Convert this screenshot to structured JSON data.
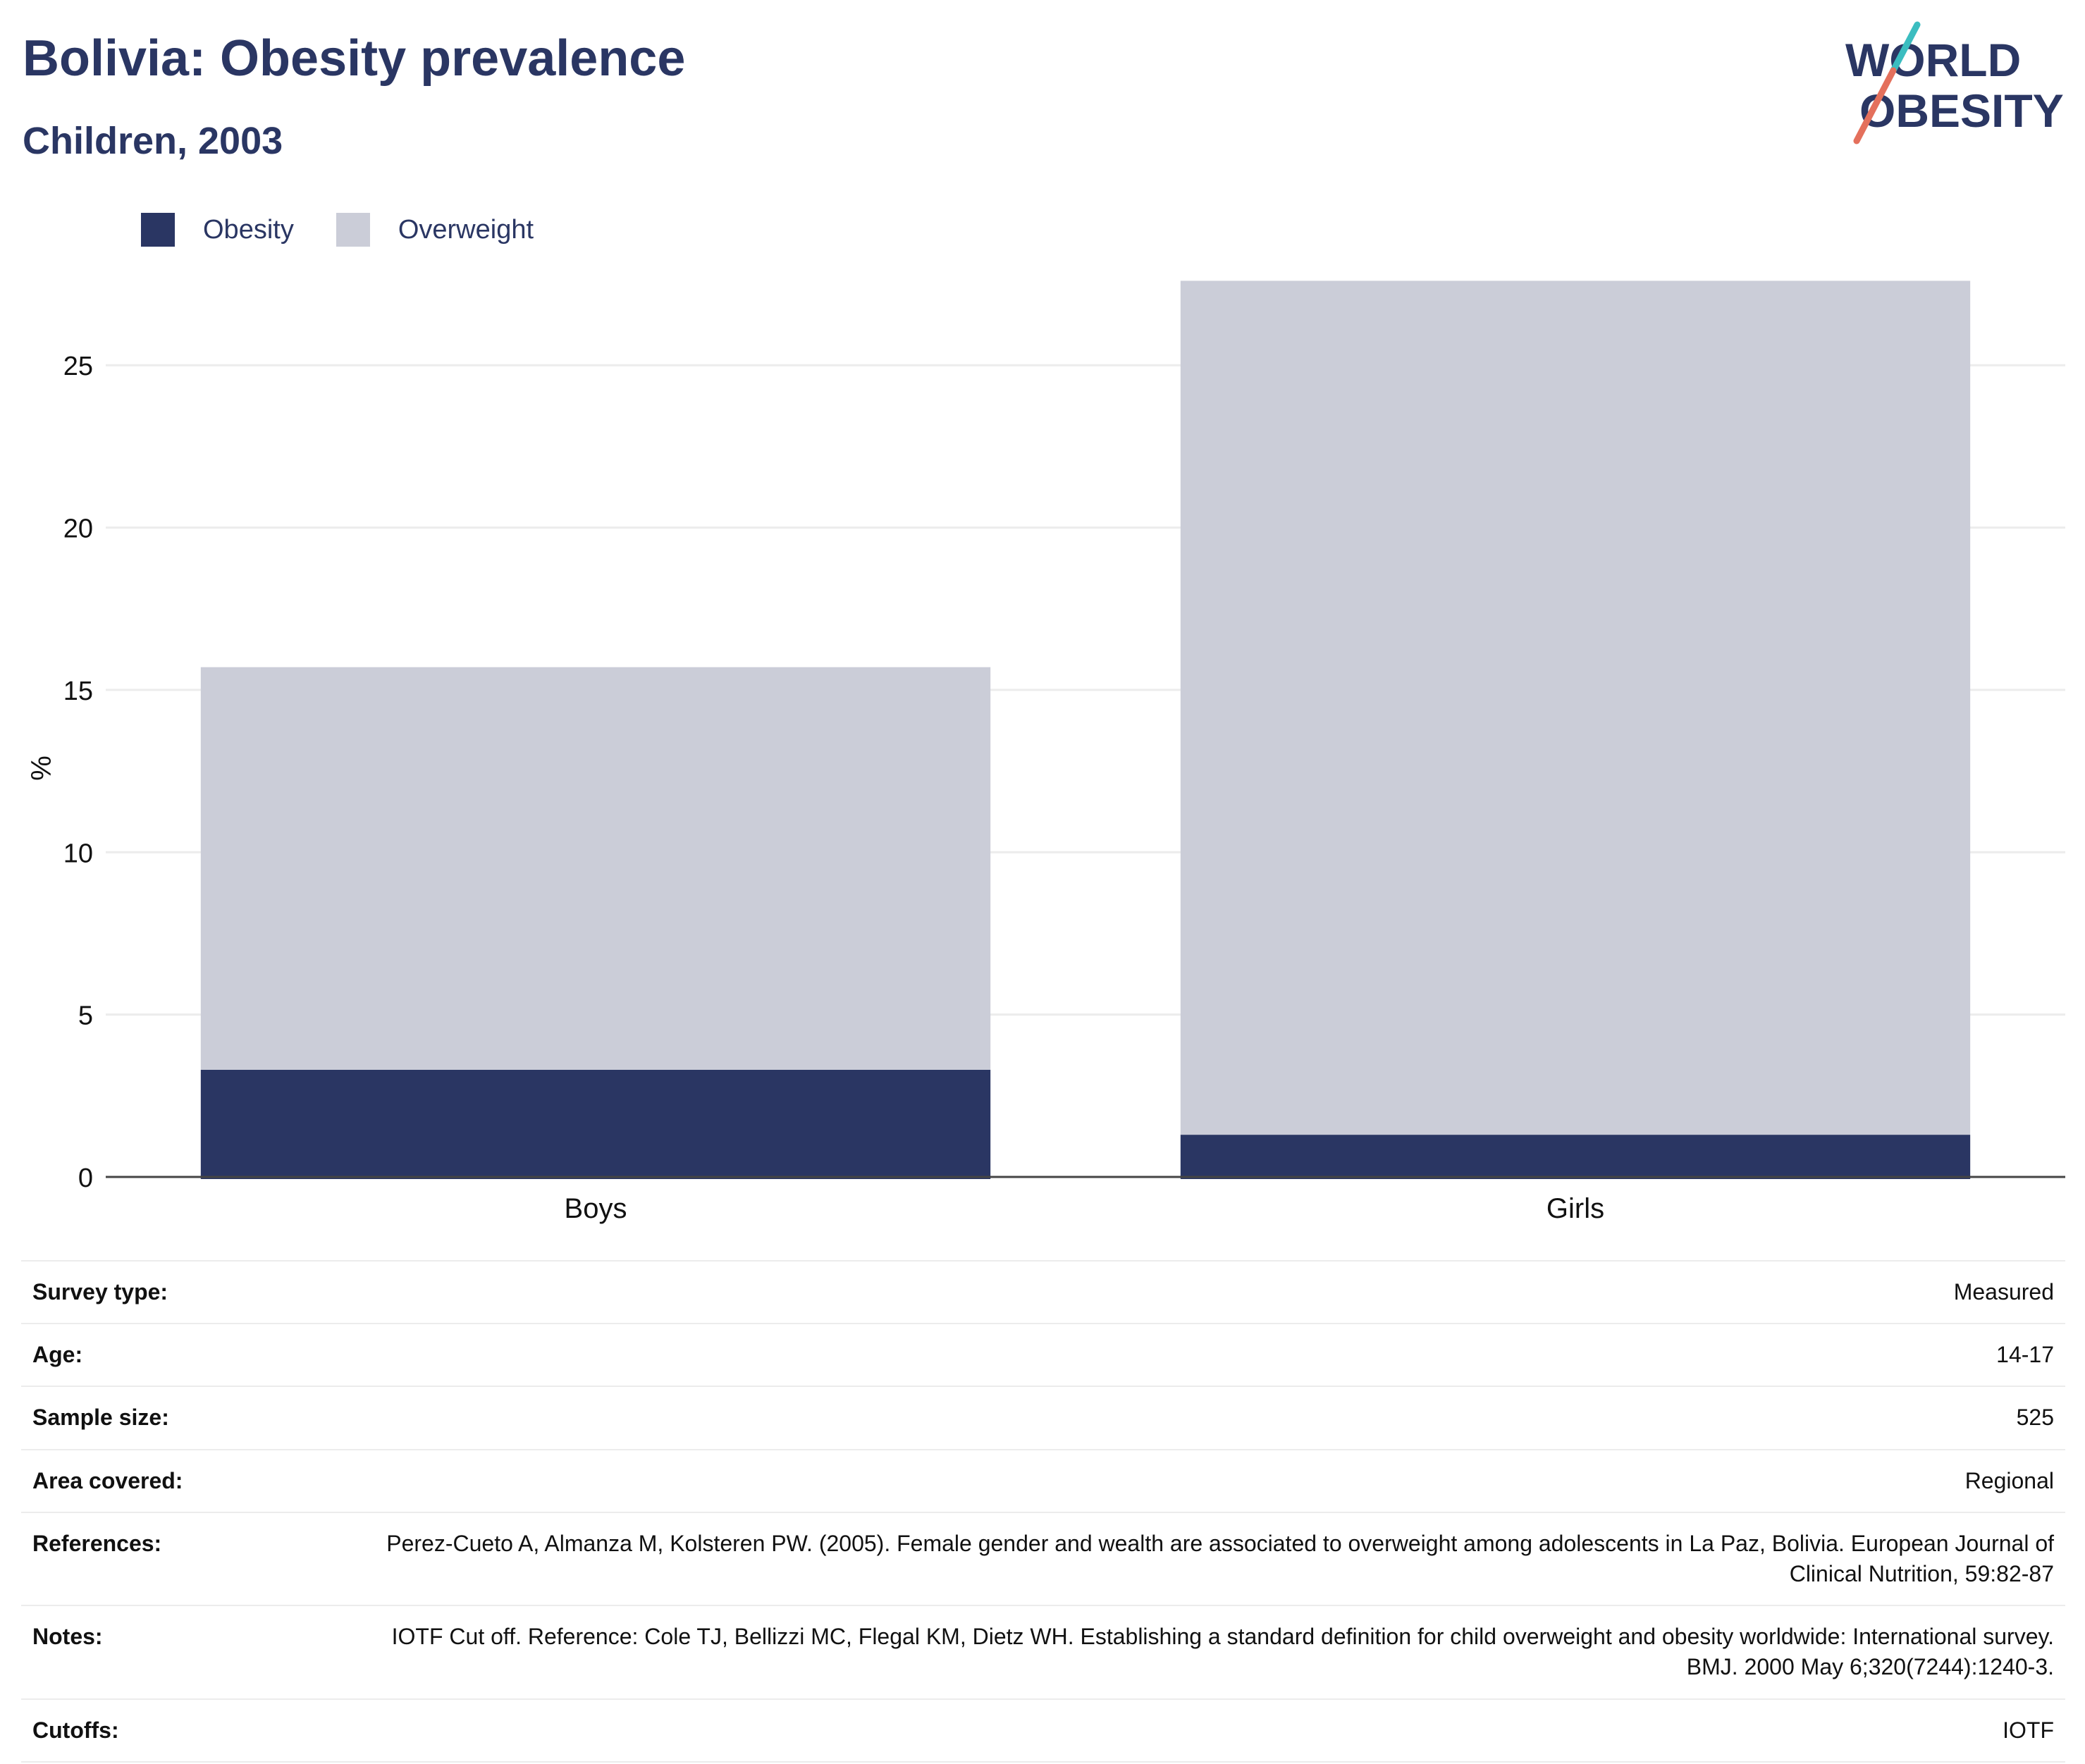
{
  "header": {
    "title": "Bolivia: Obesity prevalence",
    "subtitle": "Children, 2003",
    "logo": {
      "line1": "WORLD",
      "line2": "OBESITY"
    }
  },
  "colors": {
    "obesity": "#2a3663",
    "overweight": "#cbcdd8",
    "accent_teal": "#3bbdc0",
    "accent_coral": "#e4705c",
    "grid": "#ececec",
    "axis": "#444444"
  },
  "chart_data": {
    "type": "bar",
    "stacked": true,
    "categories": [
      "Boys",
      "Girls"
    ],
    "series": [
      {
        "name": "Obesity",
        "values": [
          3.3,
          1.3
        ]
      },
      {
        "name": "Overweight",
        "values": [
          12.4,
          26.3
        ]
      }
    ],
    "ylabel": "%",
    "ylim": [
      0,
      28
    ],
    "yticks": [
      0,
      5,
      10,
      15,
      20,
      25
    ],
    "grid": true,
    "legend_position": "top-left"
  },
  "details": [
    {
      "label": "Survey type:",
      "value": "Measured"
    },
    {
      "label": "Age:",
      "value": "14-17"
    },
    {
      "label": "Sample size:",
      "value": "525"
    },
    {
      "label": "Area covered:",
      "value": "Regional"
    },
    {
      "label": "References:",
      "value": "Perez-Cueto A, Almanza M, Kolsteren PW. (2005). Female gender and wealth are associated to overweight among adolescents in La Paz, Bolivia. European Journal of Clinical Nutrition, 59:82-87"
    },
    {
      "label": "Notes:",
      "value": "IOTF Cut off. Reference: Cole TJ, Bellizzi MC, Flegal KM, Dietz WH. Establishing a standard definition for child overweight and obesity worldwide: International survey. BMJ. 2000 May 6;320(7244):1240-3."
    },
    {
      "label": "Cutoffs:",
      "value": "IOTF"
    }
  ]
}
